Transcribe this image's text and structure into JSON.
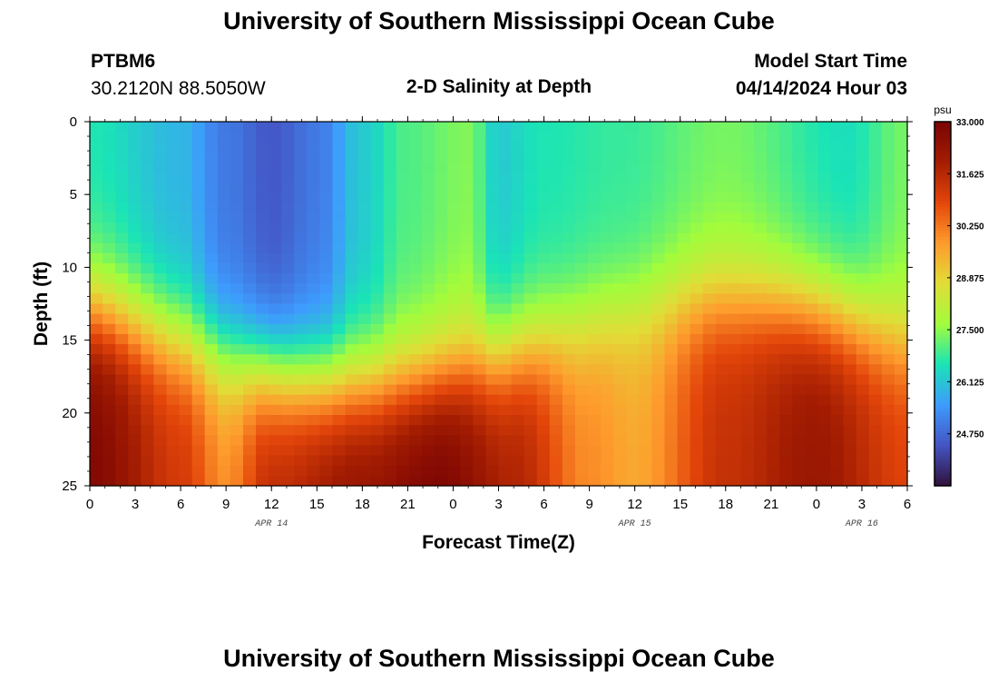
{
  "header": {
    "title": "University of Southern Mississippi Ocean Cube",
    "station_id": "PTBM6",
    "station_coords": "30.2120N  88.5050W",
    "plot_title": "2-D Salinity at Depth",
    "model_start_label": "Model Start Time",
    "model_start_value": "04/14/2024 Hour 03"
  },
  "footer": {
    "title": "University of Southern Mississippi Ocean Cube"
  },
  "chart_data": {
    "type": "heatmap",
    "title": "2-D Salinity at Depth",
    "xlabel": "Forecast Time(Z)",
    "ylabel": "Depth (ft)",
    "x_range_hours": [
      0,
      54
    ],
    "x_ticks": [
      "0",
      "3",
      "6",
      "9",
      "12",
      "15",
      "18",
      "21",
      "0",
      "3",
      "6",
      "9",
      "12",
      "15",
      "18",
      "21",
      "0",
      "3",
      "6"
    ],
    "date_labels": [
      {
        "text": "APR 14",
        "hour": 12
      },
      {
        "text": "APR 15",
        "hour": 36
      },
      {
        "text": "APR 16",
        "hour": 51
      }
    ],
    "y_range_ft": [
      0,
      25
    ],
    "y_ticks": [
      "0",
      "5",
      "10",
      "15",
      "20",
      "25"
    ],
    "colorbar": {
      "unit": "psu",
      "min": 23.375,
      "max": 33.0,
      "tick_labels": [
        "33.000",
        "31.625",
        "30.250",
        "28.875",
        "27.500",
        "26.125",
        "24.750"
      ],
      "colors": [
        "#30123b",
        "#4454c4",
        "#3e9bfe",
        "#1ae4b6",
        "#a2fc3c",
        "#e1dd37",
        "#fe9b2d",
        "#e4460a",
        "#a41d02",
        "#7a0403"
      ]
    },
    "surface_salinity_psu": [
      {
        "hour": 0,
        "value": 26.6
      },
      {
        "hour": 6,
        "value": 25.9
      },
      {
        "hour": 9,
        "value": 25.0
      },
      {
        "hour": 12,
        "value": 24.5
      },
      {
        "hour": 15,
        "value": 25.0
      },
      {
        "hour": 18,
        "value": 26.2
      },
      {
        "hour": 21,
        "value": 27.0
      },
      {
        "hour": 25,
        "value": 27.4
      },
      {
        "hour": 27,
        "value": 26.2
      },
      {
        "hour": 30,
        "value": 26.6
      },
      {
        "hour": 35,
        "value": 26.8
      },
      {
        "hour": 42,
        "value": 27.3
      },
      {
        "hour": 50,
        "value": 26.5
      },
      {
        "hour": 54,
        "value": 27.3
      }
    ],
    "bottom_salinity_psu": [
      {
        "hour": 0,
        "value": 32.8
      },
      {
        "hour": 6,
        "value": 31.2
      },
      {
        "hour": 9,
        "value": 30.0
      },
      {
        "hour": 12,
        "value": 31.6
      },
      {
        "hour": 18,
        "value": 32.4
      },
      {
        "hour": 23,
        "value": 33.0
      },
      {
        "hour": 28,
        "value": 31.8
      },
      {
        "hour": 33,
        "value": 30.0
      },
      {
        "hour": 36,
        "value": 29.6
      },
      {
        "hour": 42,
        "value": 31.4
      },
      {
        "hour": 48,
        "value": 32.2
      },
      {
        "hour": 54,
        "value": 31.0
      }
    ]
  }
}
